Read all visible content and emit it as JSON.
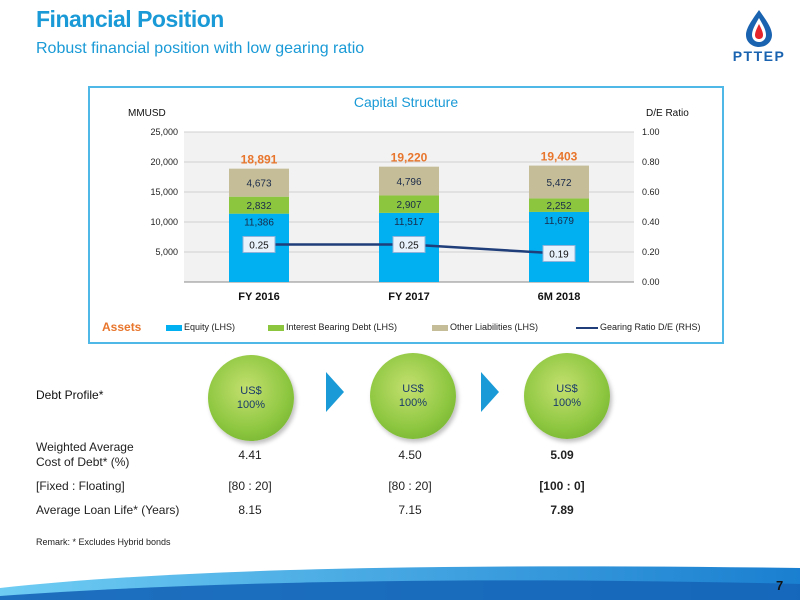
{
  "header": {
    "title": "Financial Position",
    "subtitle": "Robust financial position with low gearing ratio"
  },
  "logo": {
    "text": "PTTEP"
  },
  "colors": {
    "equity": "#00b0f0",
    "interest_debt": "#8cc63f",
    "other_liab": "#c4bd97",
    "gearing_line": "#1f3e7a",
    "accent": "#1a9ad6",
    "total_label": "#e8762d"
  },
  "chart_data": {
    "type": "bar",
    "title": "Capital Structure",
    "ylabel": "MMUSD",
    "y2label": "D/E Ratio",
    "ylim": [
      0,
      25000
    ],
    "y2lim": [
      0,
      1.0
    ],
    "yticks": [
      "5,000",
      "10,000",
      "15,000",
      "20,000",
      "25,000"
    ],
    "y2ticks": [
      "0.00",
      "0.20",
      "0.40",
      "0.60",
      "0.80",
      "1.00"
    ],
    "categories": [
      "FY 2016",
      "FY 2017",
      "6M 2018"
    ],
    "series": [
      {
        "name": "Equity (LHS)",
        "values": [
          11386,
          11517,
          11679
        ],
        "labels": [
          "11,386",
          "11,517",
          "11,679"
        ]
      },
      {
        "name": "Interest Bearing Debt (LHS)",
        "values": [
          2832,
          2907,
          2252
        ],
        "labels": [
          "2,832",
          "2,907",
          "2,252"
        ]
      },
      {
        "name": "Other Liabilities (LHS)",
        "values": [
          4673,
          4796,
          5472
        ],
        "labels": [
          "4,673",
          "4,796",
          "5,472"
        ]
      },
      {
        "name": "Gearing Ratio D/E (RHS)",
        "values": [
          0.25,
          0.25,
          0.19
        ],
        "labels": [
          "0.25",
          "0.25",
          "0.19"
        ]
      }
    ],
    "totals": [
      "18,891",
      "19,220",
      "19,403"
    ],
    "assets_label": "Assets",
    "grid": true,
    "legend": "bottom"
  },
  "debt_profile": {
    "title": "Debt Profile*",
    "circles": [
      {
        "line1": "US$",
        "line2": "100%"
      },
      {
        "line1": "US$",
        "line2": "100%"
      },
      {
        "line1": "US$",
        "line2": "100%"
      }
    ],
    "rows": [
      {
        "label_line1": "Weighted Average",
        "label_line2": "Cost of Debt* (%)",
        "values": [
          "4.41",
          "4.50",
          "5.09"
        ]
      },
      {
        "label_line1": "[Fixed : Floating]",
        "label_line2": "",
        "values": [
          "[80 : 20]",
          "[80 : 20]",
          "[100 : 0]"
        ]
      },
      {
        "label_line1": "Average Loan Life* (Years)",
        "label_line2": "",
        "values": [
          "8.15",
          "7.15",
          "7.89"
        ]
      }
    ]
  },
  "remark": "Remark:    *    Excludes Hybrid bonds",
  "page_number": "7"
}
